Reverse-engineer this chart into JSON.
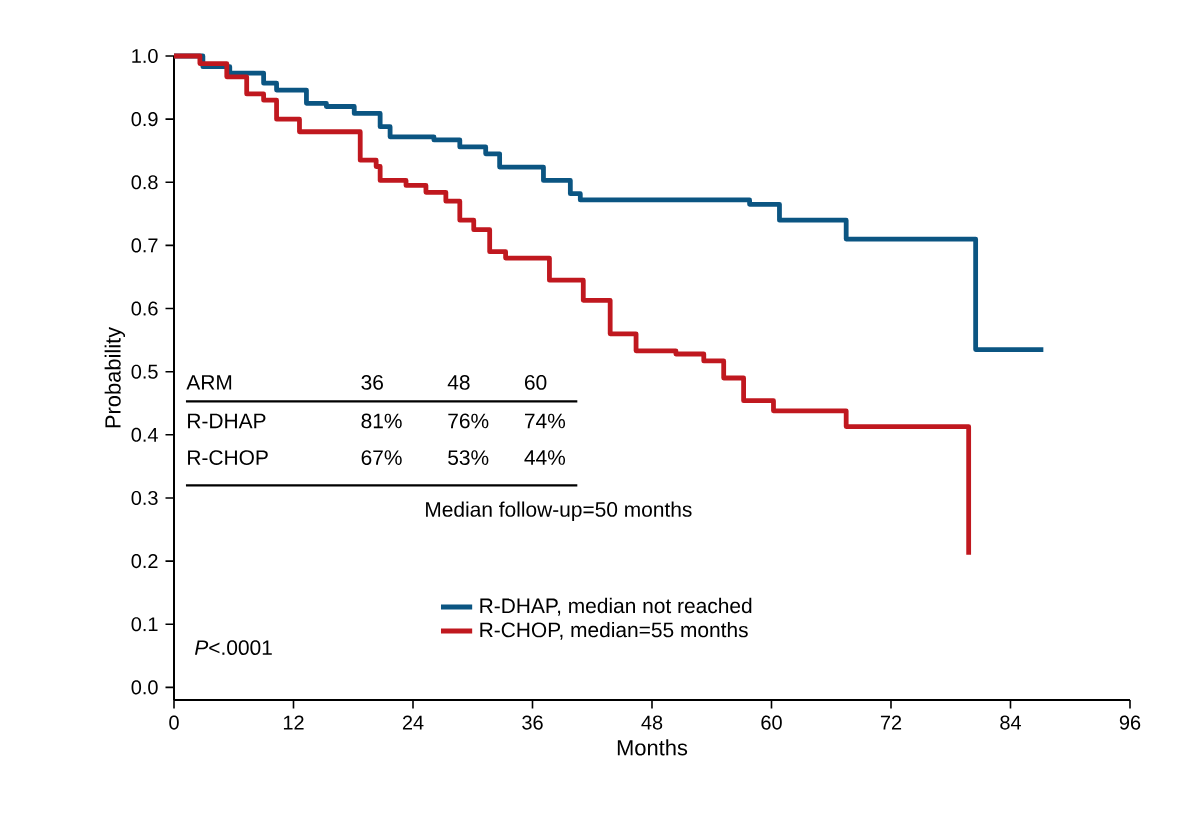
{
  "chart_data": {
    "type": "step",
    "xlabel": "Months",
    "ylabel": "Probability",
    "xlim": [
      0,
      96
    ],
    "xticks": [
      0,
      12,
      24,
      36,
      48,
      60,
      72,
      84,
      96
    ],
    "ylim": [
      -0.02,
      1.0
    ],
    "yticks": [
      {
        "value": 0,
        "label": "0.0"
      },
      {
        "value": 0.1,
        "label": "0.1"
      },
      {
        "value": 0.2,
        "label": "0.2"
      },
      {
        "value": 0.3,
        "label": "0.3"
      },
      {
        "value": 0.4,
        "label": "0.4"
      },
      {
        "value": 0.5,
        "label": "0.5"
      },
      {
        "value": 0.6,
        "label": "0.6"
      },
      {
        "value": 0.7,
        "label": "0.7"
      },
      {
        "value": 0.8,
        "label": "0.8"
      },
      {
        "value": 0.9,
        "label": "0.9"
      },
      {
        "value": 1.0,
        "label": "1.0"
      }
    ],
    "legend": "bottom",
    "marker": "none",
    "line_style": "solid",
    "series": [
      {
        "name": "R-DHAP, median not reached",
        "color": "#0b5582",
        "x": [
          0,
          2.9,
          5.6,
          9.0,
          10.3,
          13.3,
          15.3,
          18.1,
          20.7,
          21.7,
          26.1,
          28.7,
          31.3,
          32.7,
          37.1,
          39.8,
          40.8,
          57.8,
          60.8,
          67.5,
          80.5,
          87.3
        ],
        "values": [
          1.0,
          0.983,
          0.973,
          0.957,
          0.946,
          0.925,
          0.92,
          0.909,
          0.888,
          0.872,
          0.867,
          0.856,
          0.845,
          0.824,
          0.803,
          0.782,
          0.772,
          0.765,
          0.74,
          0.71,
          0.535,
          0.535
        ]
      },
      {
        "name": "R-CHOP, median=55 months",
        "color": "#c0181f",
        "x": [
          0,
          2.6,
          5.3,
          7.3,
          9.0,
          10.3,
          12.6,
          18.7,
          20.3,
          20.7,
          23.3,
          25.3,
          27.3,
          28.7,
          30.1,
          31.7,
          33.3,
          37.7,
          41.1,
          43.8,
          46.4,
          50.4,
          53.2,
          55.2,
          57.2,
          60.2,
          67.5,
          79.8,
          79.8
        ],
        "values": [
          1.0,
          0.988,
          0.967,
          0.94,
          0.93,
          0.9,
          0.88,
          0.835,
          0.825,
          0.803,
          0.795,
          0.784,
          0.77,
          0.74,
          0.725,
          0.69,
          0.68,
          0.645,
          0.613,
          0.56,
          0.533,
          0.528,
          0.517,
          0.49,
          0.454,
          0.438,
          0.413,
          0.413,
          0.21
        ]
      }
    ],
    "annotations": [
      "ARM",
      "36",
      "48",
      "60",
      "R-DHAP",
      "81%",
      "76%",
      "74%",
      "R-CHOP",
      "67%",
      "53%",
      "44%",
      "Median follow-up=50 months",
      "*P*<.0001"
    ]
  }
}
